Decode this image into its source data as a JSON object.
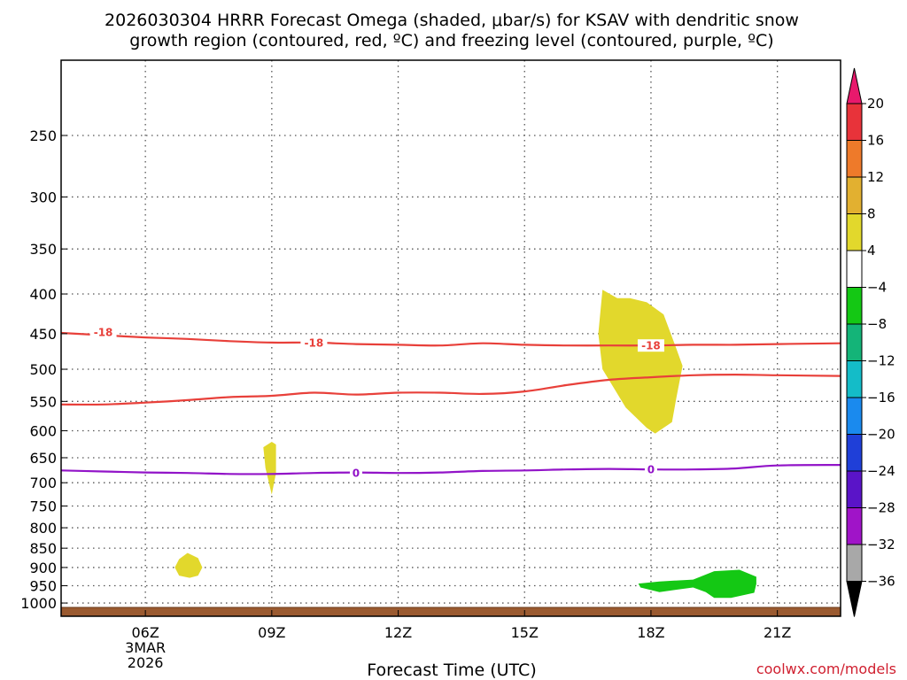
{
  "chart_data": {
    "type": "time-height",
    "title_line1": "2026030304 HRRR Forecast Omega (shaded, μbar/s) for KSAV with dendritic snow",
    "title_line2": "growth region (contoured, red, ºC) and freezing level (contoured, purple, ºC)",
    "xlabel": "Forecast Time (UTC)",
    "credit": "coolwx.com/models",
    "x_range": [
      4,
      22.5
    ],
    "y_range_hpa": [
      1040,
      200
    ],
    "x_ticks": [
      {
        "x": 6,
        "label": "06Z",
        "sub1": "3MAR",
        "sub2": "2026"
      },
      {
        "x": 9,
        "label": "09Z"
      },
      {
        "x": 12,
        "label": "12Z"
      },
      {
        "x": 15,
        "label": "15Z"
      },
      {
        "x": 18,
        "label": "18Z"
      },
      {
        "x": 21,
        "label": "21Z"
      }
    ],
    "y_ticks": [
      250,
      300,
      350,
      400,
      450,
      500,
      550,
      600,
      650,
      700,
      750,
      800,
      850,
      900,
      950,
      1000
    ],
    "colorbar": {
      "segments": [
        {
          "color": "#e8196c",
          "type": "top-triangle"
        },
        {
          "color": "#e8333a"
        },
        {
          "color": "#ee7a2a"
        },
        {
          "color": "#e2b030"
        },
        {
          "color": "#e2d82c"
        },
        {
          "color": "#ffffff"
        },
        {
          "color": "#14c814"
        },
        {
          "color": "#14b478"
        },
        {
          "color": "#14bcc8"
        },
        {
          "color": "#1a8aee"
        },
        {
          "color": "#1f3fd8"
        },
        {
          "color": "#5a14c8"
        },
        {
          "color": "#a014c8"
        },
        {
          "color": "#a8a8a8"
        },
        {
          "color": "#000000",
          "type": "bottom-triangle"
        }
      ],
      "labels": [
        "20",
        "16",
        "12",
        "8",
        "4",
        "-4",
        "-8",
        "-12",
        "-16",
        "-20",
        "-24",
        "-28",
        "-32",
        "-36"
      ]
    },
    "contours": [
      {
        "name": "dgz-upper",
        "value": -18,
        "label": "-18",
        "color": "#e8403a",
        "points": [
          [
            4,
            449
          ],
          [
            5,
            452
          ],
          [
            6,
            455
          ],
          [
            7,
            457
          ],
          [
            8,
            460
          ],
          [
            9,
            462
          ],
          [
            10,
            462
          ],
          [
            11,
            464
          ],
          [
            12,
            465
          ],
          [
            13,
            466
          ],
          [
            14,
            463
          ],
          [
            15,
            465
          ],
          [
            16,
            466
          ],
          [
            17,
            466
          ],
          [
            18,
            466
          ],
          [
            19,
            465
          ],
          [
            20,
            465
          ],
          [
            21,
            464
          ],
          [
            22.5,
            463
          ]
        ],
        "label_at": [
          [
            5,
            448
          ],
          [
            10,
            462
          ],
          [
            18,
            466
          ]
        ]
      },
      {
        "name": "dgz-lower",
        "value": -18,
        "label": "",
        "color": "#e8403a",
        "points": [
          [
            4,
            555
          ],
          [
            5,
            555
          ],
          [
            6,
            552
          ],
          [
            7,
            548
          ],
          [
            8,
            543
          ],
          [
            9,
            541
          ],
          [
            10,
            536
          ],
          [
            11,
            539
          ],
          [
            12,
            536
          ],
          [
            13,
            536
          ],
          [
            14,
            538
          ],
          [
            15,
            534
          ],
          [
            16,
            524
          ],
          [
            17,
            516
          ],
          [
            18,
            512
          ],
          [
            19,
            509
          ],
          [
            20,
            508
          ],
          [
            21,
            509
          ],
          [
            22.5,
            510
          ]
        ],
        "label_at": []
      },
      {
        "name": "freezing-level",
        "value": 0,
        "label": "0",
        "color": "#9214c8",
        "points": [
          [
            4,
            675
          ],
          [
            5,
            677
          ],
          [
            6,
            679
          ],
          [
            7,
            680
          ],
          [
            8,
            682
          ],
          [
            9,
            682
          ],
          [
            10,
            680
          ],
          [
            11,
            679
          ],
          [
            12,
            680
          ],
          [
            13,
            679
          ],
          [
            14,
            676
          ],
          [
            15,
            675
          ],
          [
            16,
            673
          ],
          [
            17,
            672
          ],
          [
            18,
            673
          ],
          [
            19,
            673
          ],
          [
            20,
            671
          ],
          [
            21,
            665
          ],
          [
            22.5,
            664
          ]
        ],
        "label_at": [
          [
            11,
            680
          ],
          [
            18,
            673
          ]
        ]
      }
    ],
    "omega_regions": [
      {
        "name": "omega-4-18z",
        "value_range": "4 to 8",
        "color": "#e2d82c",
        "points": [
          [
            16.85,
            395
          ],
          [
            17.2,
            405
          ],
          [
            17.5,
            405
          ],
          [
            17.9,
            410
          ],
          [
            18.3,
            425
          ],
          [
            18.6,
            470
          ],
          [
            18.75,
            495
          ],
          [
            18.6,
            545
          ],
          [
            18.5,
            585
          ],
          [
            18.1,
            605
          ],
          [
            17.9,
            595
          ],
          [
            17.4,
            560
          ],
          [
            16.85,
            500
          ],
          [
            16.75,
            450
          ]
        ]
      },
      {
        "name": "omega-4-09z",
        "value_range": "4 to 8",
        "color": "#e2d82c",
        "points": [
          [
            9.0,
            620
          ],
          [
            9.1,
            625
          ],
          [
            9.1,
            680
          ],
          [
            9.0,
            725
          ],
          [
            8.85,
            670
          ],
          [
            8.8,
            630
          ]
        ]
      },
      {
        "name": "omega-4-07z",
        "value_range": "4 to 8",
        "color": "#e2d82c",
        "points": [
          [
            7.0,
            862
          ],
          [
            7.25,
            875
          ],
          [
            7.35,
            900
          ],
          [
            7.25,
            922
          ],
          [
            7.05,
            928
          ],
          [
            6.8,
            922
          ],
          [
            6.7,
            900
          ],
          [
            6.8,
            878
          ]
        ]
      },
      {
        "name": "omega-neg4-19z",
        "value_range": "-4 to -8",
        "color": "#14c814",
        "points": [
          [
            17.7,
            944
          ],
          [
            18.2,
            938
          ],
          [
            19.0,
            933
          ],
          [
            19.5,
            910
          ],
          [
            20.1,
            906
          ],
          [
            20.5,
            925
          ],
          [
            20.5,
            945
          ],
          [
            20.45,
            970
          ],
          [
            19.9,
            985
          ],
          [
            19.5,
            985
          ],
          [
            19.3,
            968
          ],
          [
            19.0,
            955
          ],
          [
            18.2,
            968
          ],
          [
            17.75,
            955
          ]
        ]
      }
    ],
    "ground": {
      "label": "surface",
      "color": "#9a5a30"
    }
  }
}
